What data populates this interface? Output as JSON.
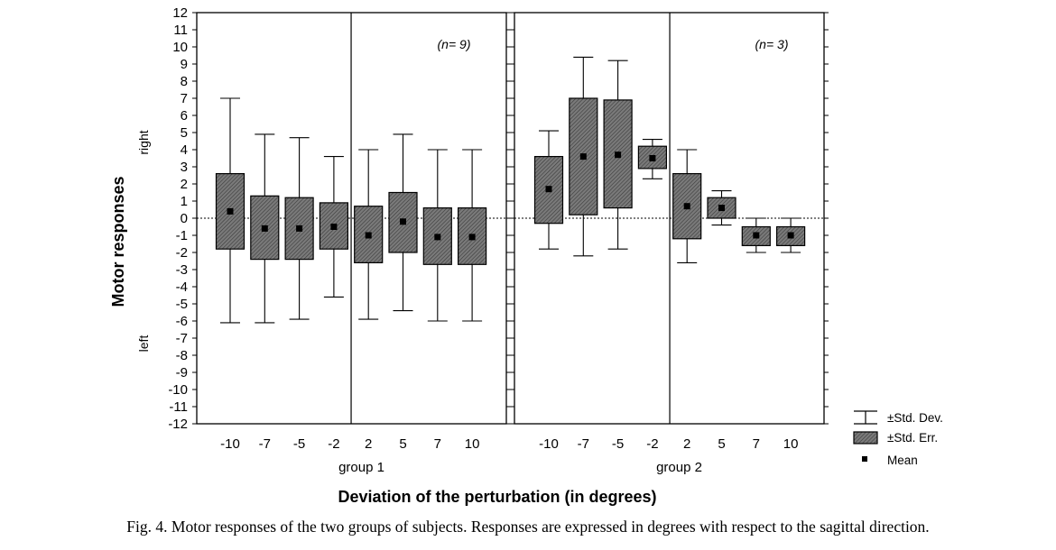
{
  "colors": {
    "box_fill": "#6e6e6e",
    "axis": "#000000",
    "background": "#ffffff"
  },
  "icons": {
    "std_dev": "whisker-icon",
    "std_err": "hatched-box-icon",
    "mean": "square-marker-icon"
  },
  "chart_data": {
    "type": "box",
    "title": "",
    "xlabel": "Deviation of the perturbation (in degrees)",
    "ylabel": "Motor responses",
    "ylabel_right": "right",
    "ylabel_left": "left",
    "ylim": [
      -12,
      12
    ],
    "yticks": [
      12,
      11,
      10,
      9,
      8,
      7,
      6,
      5,
      4,
      3,
      2,
      1,
      0,
      -1,
      -2,
      -3,
      -4,
      -5,
      -6,
      -7,
      -8,
      -9,
      -10,
      -11,
      -12
    ],
    "reference_line_y": 0,
    "legend": {
      "position": "bottom-right",
      "items": [
        "±Std. Dev.",
        "±Std. Err.",
        "Mean"
      ]
    },
    "panels": [
      {
        "group_label": "group 1",
        "n_label": "(n= 9)",
        "categories": [
          "-10",
          "-7",
          "-5",
          "-2",
          "2",
          "5",
          "7",
          "10"
        ],
        "mean": [
          0.4,
          -0.6,
          -0.6,
          -0.5,
          -1.0,
          -0.2,
          -1.1,
          -1.1
        ],
        "se_upper": [
          2.6,
          1.3,
          1.2,
          0.9,
          0.7,
          1.5,
          0.6,
          0.6
        ],
        "se_lower": [
          -1.8,
          -2.4,
          -2.4,
          -1.8,
          -2.6,
          -2.0,
          -2.7,
          -2.7
        ],
        "sd_upper": [
          7.0,
          4.9,
          4.7,
          3.6,
          4.0,
          4.9,
          4.0,
          4.0
        ],
        "sd_lower": [
          -6.1,
          -6.1,
          -5.9,
          -4.6,
          -5.9,
          -5.4,
          -6.0,
          -6.0
        ]
      },
      {
        "group_label": "group 2",
        "n_label": "(n= 3)",
        "categories": [
          "-10",
          "-7",
          "-5",
          "-2",
          "2",
          "5",
          "7",
          "10"
        ],
        "mean": [
          1.7,
          3.6,
          3.7,
          3.5,
          0.7,
          0.6,
          -1.0,
          -1.0
        ],
        "se_upper": [
          3.6,
          7.0,
          6.9,
          4.2,
          2.6,
          1.2,
          -0.5,
          -0.5
        ],
        "se_lower": [
          -0.3,
          0.2,
          0.6,
          2.9,
          -1.2,
          0.0,
          -1.6,
          -1.6
        ],
        "sd_upper": [
          5.1,
          9.4,
          9.2,
          4.6,
          4.0,
          1.6,
          0.0,
          0.0
        ],
        "sd_lower": [
          -1.8,
          -2.2,
          -1.8,
          2.3,
          -2.6,
          -0.4,
          -2.0,
          -2.0
        ]
      }
    ]
  },
  "caption": "Fig. 4. Motor responses of the two groups of subjects. Responses are expressed in degrees with respect to the sagittal direction."
}
